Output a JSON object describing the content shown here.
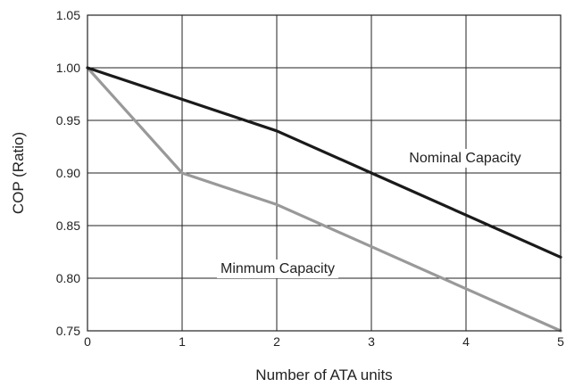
{
  "chart_data": {
    "type": "line",
    "xlabel": "Number of ATA units",
    "ylabel": "COP (Ratio)",
    "x": [
      0,
      1,
      2,
      3,
      4,
      5
    ],
    "xlim": [
      0,
      5
    ],
    "ylim": [
      0.75,
      1.05
    ],
    "x_ticks": [
      "0",
      "1",
      "2",
      "3",
      "4",
      "5"
    ],
    "y_ticks": [
      "0.75",
      "0.80",
      "0.85",
      "0.90",
      "0.95",
      "1.00",
      "1.05"
    ],
    "grid": true,
    "legend": "none",
    "series": [
      {
        "name": "Nominal Capacity",
        "color": "#1a1a1a",
        "values": [
          1.0,
          0.97,
          0.94,
          0.9,
          0.86,
          0.82
        ]
      },
      {
        "name": "Minmum Capacity",
        "color": "#999999",
        "values": [
          1.0,
          0.9,
          0.87,
          0.83,
          0.79,
          0.75
        ]
      }
    ],
    "annotations": [
      {
        "text": "Nominal Capacity",
        "series": 0
      },
      {
        "text": "Minmum Capacity",
        "series": 1
      }
    ]
  }
}
